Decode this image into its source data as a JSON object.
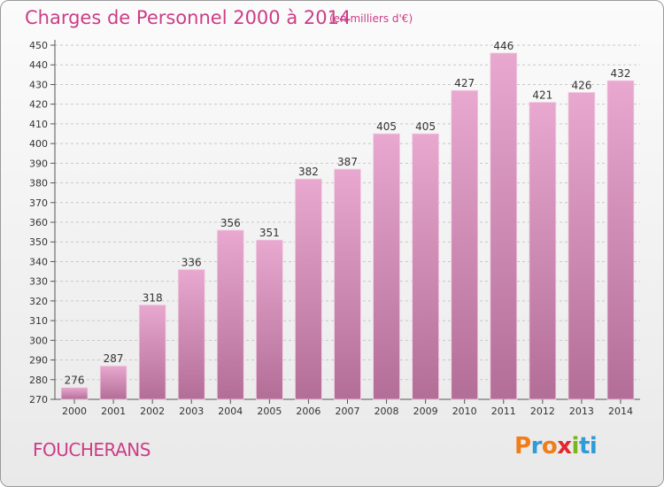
{
  "header": {
    "title": "Charges de Personnel 2000 à 2014",
    "unit": "(en milliers d'€)"
  },
  "footer": {
    "town": "FOUCHERANS",
    "logo_text": "Proxiti"
  },
  "colors": {
    "text_accent": "#cc3d86",
    "bar_top": "#e8a8cf",
    "bar_bottom": "#b36e97",
    "logo_letters": [
      "#f07d1a",
      "#2f9bd7",
      "#f07d1a",
      "#e3262e",
      "#7ab51d",
      "#2f9bd7",
      "#2f9bd7"
    ]
  },
  "chart_data": {
    "type": "bar",
    "categories": [
      "2000",
      "2001",
      "2002",
      "2003",
      "2004",
      "2005",
      "2006",
      "2007",
      "2008",
      "2009",
      "2010",
      "2011",
      "2012",
      "2013",
      "2014"
    ],
    "values": [
      276,
      287,
      318,
      336,
      356,
      351,
      382,
      387,
      405,
      405,
      427,
      446,
      421,
      426,
      432
    ],
    "ylim": [
      270,
      450
    ],
    "yticks": [
      270,
      280,
      290,
      300,
      310,
      320,
      330,
      340,
      350,
      360,
      370,
      380,
      390,
      400,
      410,
      420,
      430,
      440,
      450
    ],
    "grid": "horizontal-dashed",
    "data_labels": true
  }
}
